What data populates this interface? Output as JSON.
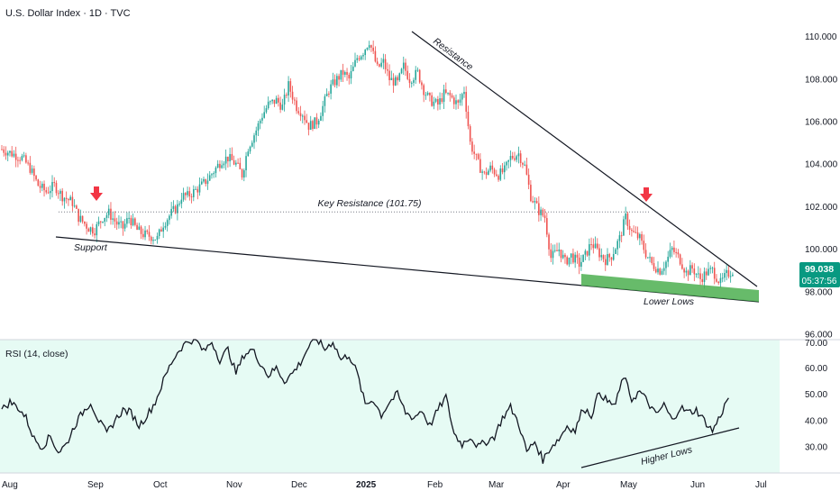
{
  "chart_data": {
    "type": "candlestick",
    "title": "U.S. Dollar Index · 1D · TVC",
    "price_axis": {
      "ylim": [
        96,
        111
      ],
      "ticks": [
        "110.000",
        "108.000",
        "106.000",
        "104.000",
        "102.000",
        "100.000",
        "98.000",
        "96.000"
      ]
    },
    "time_axis": {
      "ticks": [
        "Aug",
        "Sep",
        "Oct",
        "Nov",
        "Dec",
        "2025",
        "Feb",
        "Mar",
        "Apr",
        "May",
        "Jun",
        "Jul"
      ]
    },
    "current_price": {
      "value": "99.038",
      "countdown": "05:37:56"
    },
    "price_path": [
      [
        0,
        104.7
      ],
      [
        5,
        104.5
      ],
      [
        10,
        104.3
      ],
      [
        14,
        103.8
      ],
      [
        18,
        103.0
      ],
      [
        22,
        102.7
      ],
      [
        26,
        103.0
      ],
      [
        30,
        102.5
      ],
      [
        35,
        102.2
      ],
      [
        38,
        101.5
      ],
      [
        40,
        101.3
      ],
      [
        43,
        101.0
      ],
      [
        46,
        100.9
      ],
      [
        50,
        101.5
      ],
      [
        53,
        101.7
      ],
      [
        57,
        101.2
      ],
      [
        60,
        101.0
      ],
      [
        63,
        101.5
      ],
      [
        67,
        100.9
      ],
      [
        70,
        100.7
      ],
      [
        74,
        100.6
      ],
      [
        77,
        100.5
      ],
      [
        80,
        101.2
      ],
      [
        84,
        101.7
      ],
      [
        87,
        102.0
      ],
      [
        89,
        102.5
      ],
      [
        92,
        102.5
      ],
      [
        95,
        102.7
      ],
      [
        99,
        103.0
      ],
      [
        102,
        103.3
      ],
      [
        106,
        103.8
      ],
      [
        109,
        104.2
      ],
      [
        112,
        104.3
      ],
      [
        116,
        104.0
      ],
      [
        119,
        103.5
      ],
      [
        122,
        104.8
      ],
      [
        126,
        105.6
      ],
      [
        129,
        106.3
      ],
      [
        132,
        106.8
      ],
      [
        136,
        107.0
      ],
      [
        139,
        106.7
      ],
      [
        142,
        107.7
      ],
      [
        146,
        106.7
      ],
      [
        149,
        106.4
      ],
      [
        152,
        105.8
      ],
      [
        156,
        106.0
      ],
      [
        159,
        106.7
      ],
      [
        162,
        107.5
      ],
      [
        166,
        108.0
      ],
      [
        169,
        108.3
      ],
      [
        172,
        108.0
      ],
      [
        176,
        109.0
      ],
      [
        179,
        109.3
      ],
      [
        182,
        109.8
      ],
      [
        186,
        108.5
      ],
      [
        189,
        108.8
      ],
      [
        192,
        108.0
      ],
      [
        196,
        107.8
      ],
      [
        199,
        108.6
      ],
      [
        202,
        108.0
      ],
      [
        206,
        108.3
      ],
      [
        209,
        107.5
      ],
      [
        212,
        107.0
      ],
      [
        216,
        106.8
      ],
      [
        219,
        107.3
      ],
      [
        222,
        107.2
      ],
      [
        226,
        106.8
      ],
      [
        229,
        107.5
      ],
      [
        232,
        105.0
      ],
      [
        236,
        104.0
      ],
      [
        239,
        103.5
      ],
      [
        242,
        103.8
      ],
      [
        246,
        103.5
      ],
      [
        249,
        103.7
      ],
      [
        252,
        104.3
      ],
      [
        256,
        104.5
      ],
      [
        259,
        103.9
      ],
      [
        262,
        102.5
      ],
      [
        266,
        101.8
      ],
      [
        269,
        101.5
      ],
      [
        272,
        99.6
      ],
      [
        276,
        100.0
      ],
      [
        279,
        99.4
      ],
      [
        282,
        99.7
      ],
      [
        286,
        99.3
      ],
      [
        289,
        99.7
      ],
      [
        292,
        100.3
      ],
      [
        296,
        99.8
      ],
      [
        299,
        99.5
      ],
      [
        302,
        99.7
      ],
      [
        306,
        100.5
      ],
      [
        309,
        101.5
      ],
      [
        312,
        100.8
      ],
      [
        316,
        100.5
      ],
      [
        319,
        99.8
      ],
      [
        322,
        99.3
      ],
      [
        326,
        99.0
      ],
      [
        329,
        99.4
      ],
      [
        332,
        100.0
      ],
      [
        336,
        99.5
      ],
      [
        339,
        98.9
      ],
      [
        342,
        99.1
      ],
      [
        346,
        98.6
      ],
      [
        349,
        98.9
      ],
      [
        352,
        99.0
      ],
      [
        356,
        98.4
      ],
      [
        359,
        98.8
      ],
      [
        362,
        99.0
      ]
    ],
    "rsi": {
      "label": "RSI (14, close)",
      "ylim": [
        23,
        71
      ],
      "ticks": [
        "70.00",
        "60.00",
        "50.00",
        "40.00",
        "30.00"
      ],
      "path": [
        [
          0,
          44
        ],
        [
          4,
          47
        ],
        [
          8,
          45
        ],
        [
          12,
          41
        ],
        [
          16,
          33
        ],
        [
          20,
          30
        ],
        [
          24,
          34
        ],
        [
          28,
          28
        ],
        [
          32,
          31
        ],
        [
          36,
          38
        ],
        [
          40,
          43
        ],
        [
          44,
          47
        ],
        [
          48,
          40
        ],
        [
          52,
          35
        ],
        [
          56,
          40
        ],
        [
          60,
          44
        ],
        [
          64,
          43
        ],
        [
          68,
          38
        ],
        [
          72,
          42
        ],
        [
          76,
          47
        ],
        [
          80,
          55
        ],
        [
          84,
          62
        ],
        [
          88,
          67
        ],
        [
          92,
          70
        ],
        [
          96,
          71
        ],
        [
          100,
          66
        ],
        [
          104,
          70
        ],
        [
          108,
          63
        ],
        [
          112,
          67
        ],
        [
          116,
          58
        ],
        [
          120,
          65
        ],
        [
          124,
          67
        ],
        [
          128,
          62
        ],
        [
          132,
          57
        ],
        [
          136,
          60
        ],
        [
          140,
          55
        ],
        [
          144,
          58
        ],
        [
          148,
          62
        ],
        [
          152,
          68
        ],
        [
          156,
          71
        ],
        [
          160,
          67
        ],
        [
          164,
          70
        ],
        [
          168,
          63
        ],
        [
          172,
          65
        ],
        [
          176,
          58
        ],
        [
          180,
          46
        ],
        [
          184,
          48
        ],
        [
          188,
          42
        ],
        [
          192,
          47
        ],
        [
          196,
          50
        ],
        [
          200,
          43
        ],
        [
          204,
          41
        ],
        [
          208,
          44
        ],
        [
          212,
          38
        ],
        [
          216,
          44
        ],
        [
          220,
          49
        ],
        [
          224,
          35
        ],
        [
          228,
          31
        ],
        [
          232,
          34
        ],
        [
          236,
          30
        ],
        [
          240,
          32
        ],
        [
          244,
          34
        ],
        [
          248,
          41
        ],
        [
          252,
          45
        ],
        [
          256,
          39
        ],
        [
          260,
          28
        ],
        [
          264,
          32
        ],
        [
          268,
          25
        ],
        [
          272,
          30
        ],
        [
          276,
          33
        ],
        [
          280,
          38
        ],
        [
          284,
          36
        ],
        [
          288,
          45
        ],
        [
          292,
          42
        ],
        [
          296,
          51
        ],
        [
          300,
          47
        ],
        [
          304,
          46
        ],
        [
          308,
          57
        ],
        [
          312,
          48
        ],
        [
          316,
          51
        ],
        [
          320,
          47
        ],
        [
          324,
          42
        ],
        [
          328,
          46
        ],
        [
          332,
          40
        ],
        [
          336,
          45
        ],
        [
          340,
          43
        ],
        [
          344,
          44
        ],
        [
          348,
          40
        ],
        [
          352,
          36
        ],
        [
          356,
          42
        ],
        [
          360,
          49
        ]
      ]
    },
    "annotations": {
      "key_resistance": {
        "label": "Key Resistance (101.75)",
        "value": 101.75
      },
      "resistance": {
        "label": "Resistance"
      },
      "support": {
        "label": "Support"
      },
      "lower_lows": {
        "label": "Lower Lows"
      },
      "higher_lows": {
        "label": "Higher Lows"
      }
    },
    "colors": {
      "up": "#26a69a",
      "down": "#ef5350",
      "zone": "#4caf50",
      "arrow": "#f23645",
      "price_tag": "#089981"
    }
  }
}
